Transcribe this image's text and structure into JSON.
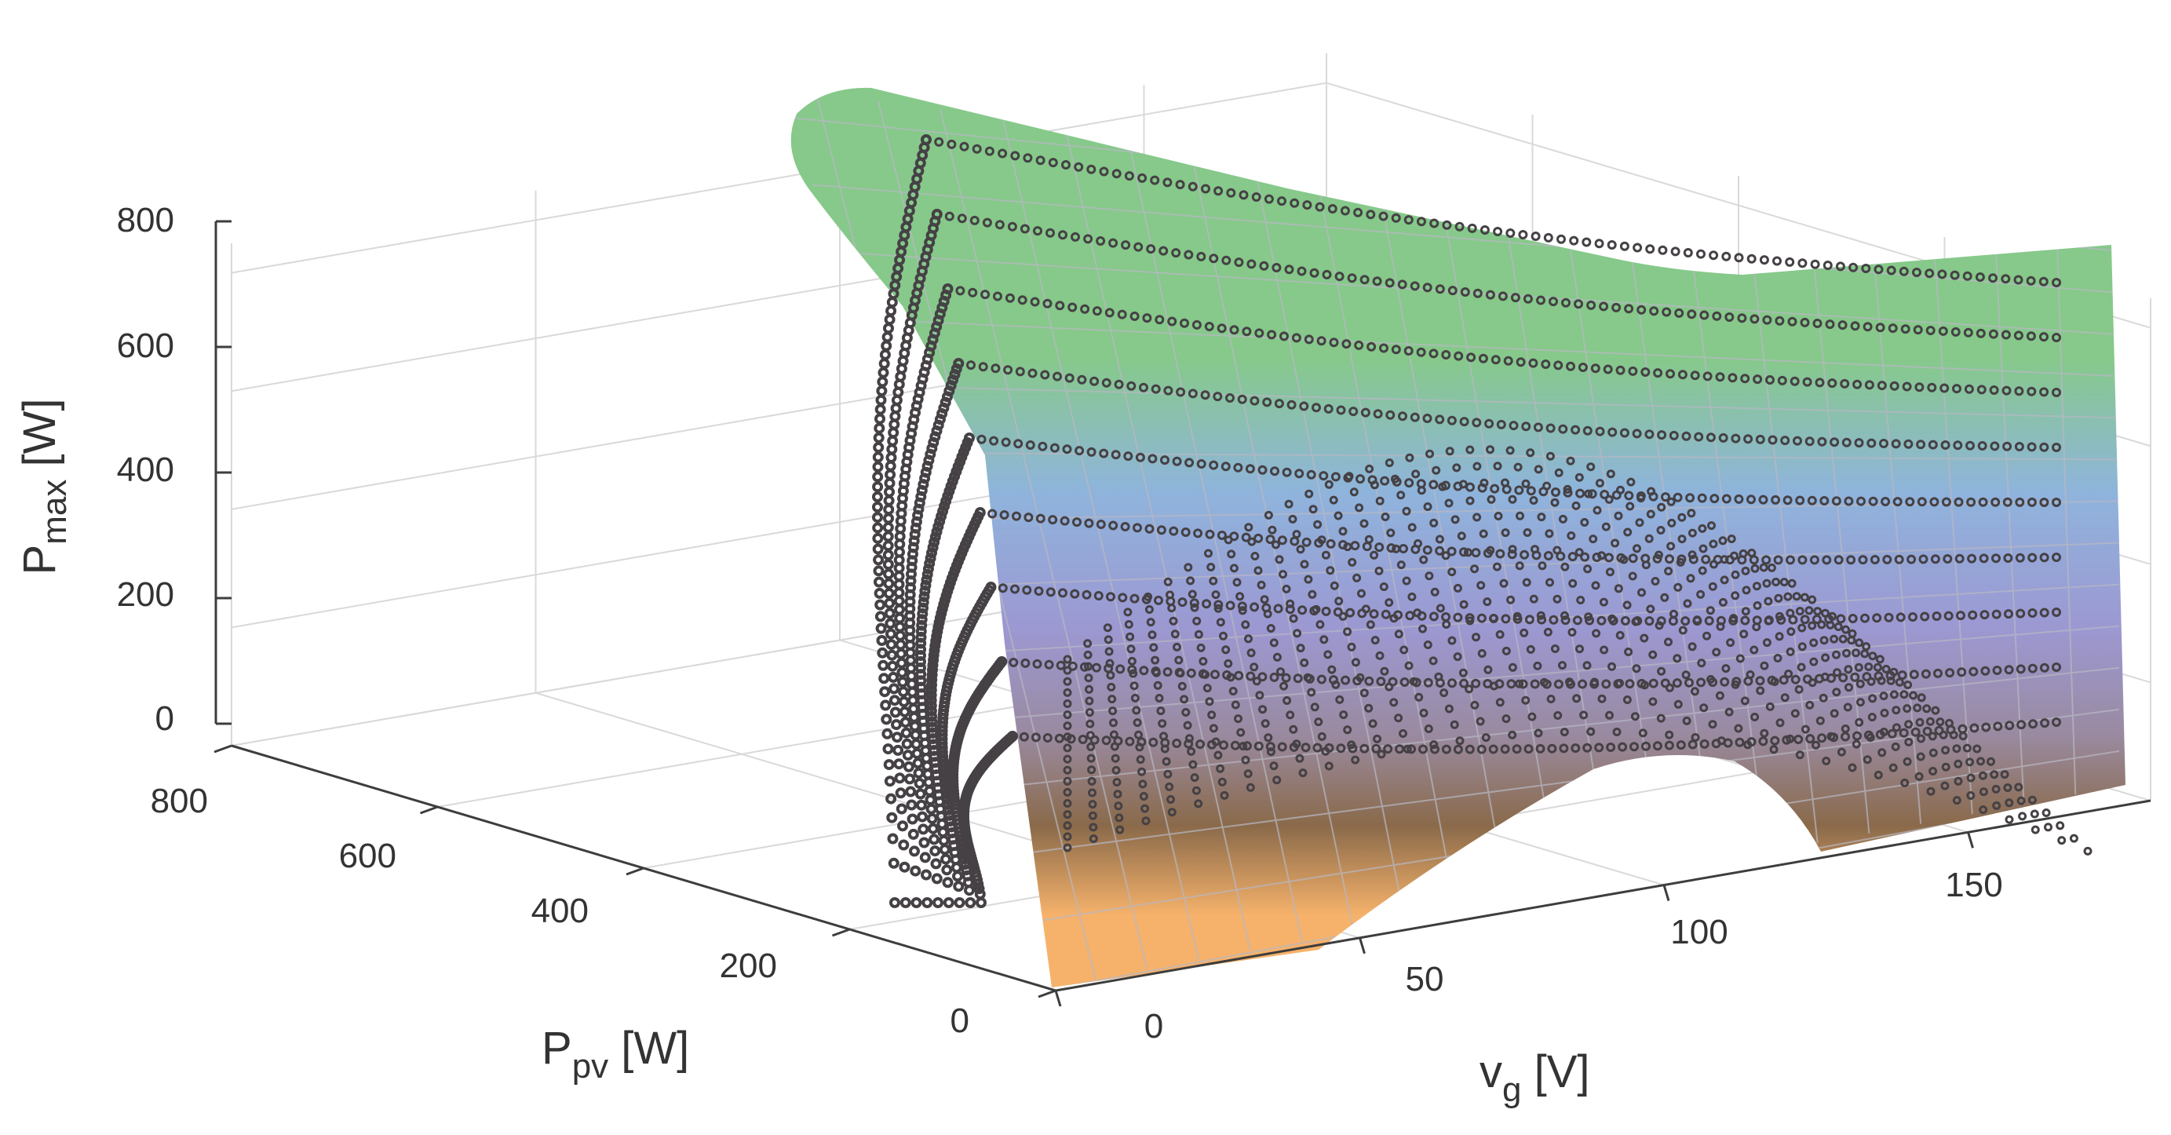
{
  "chart_data": {
    "type": "scatter3d",
    "title": "",
    "axes": {
      "x": {
        "label": "P",
        "label_sub": "pv",
        "label_unit": " [W]",
        "range": [
          0,
          800
        ],
        "ticks": [
          0,
          200,
          400,
          600,
          800
        ]
      },
      "y": {
        "label": "v",
        "label_sub": "g",
        "label_unit": " [V]",
        "range": [
          0,
          180
        ],
        "ticks": [
          0,
          50,
          100,
          150
        ]
      },
      "z": {
        "label": "P",
        "label_sub": "max",
        "label_unit": " [W]",
        "range": [
          0,
          850
        ],
        "ticks": [
          0,
          200,
          400,
          600,
          800
        ]
      }
    },
    "grid": true,
    "legend": "none",
    "surface": {
      "colormap": [
        "#f6b26b",
        "#8a6a4a",
        "#8f8fcf",
        "#8fb4dc",
        "#86c98a"
      ],
      "colormap_stops": [
        0,
        150,
        300,
        450,
        700
      ],
      "edge_color": "#b8b8c4"
    },
    "series": [
      {
        "p_pv": 800,
        "marker_color": "#454145"
      },
      {
        "p_pv": 700,
        "marker_color": "#454145"
      },
      {
        "p_pv": 600,
        "marker_color": "#454145"
      },
      {
        "p_pv": 500,
        "marker_color": "#454145"
      },
      {
        "p_pv": 400,
        "marker_color": "#454145"
      },
      {
        "p_pv": 300,
        "marker_color": "#454145"
      },
      {
        "p_pv": 200,
        "marker_color": "#454145"
      },
      {
        "p_pv": 100,
        "marker_color": "#454145"
      },
      {
        "p_pv": 0,
        "marker_color": "#454145"
      }
    ]
  }
}
